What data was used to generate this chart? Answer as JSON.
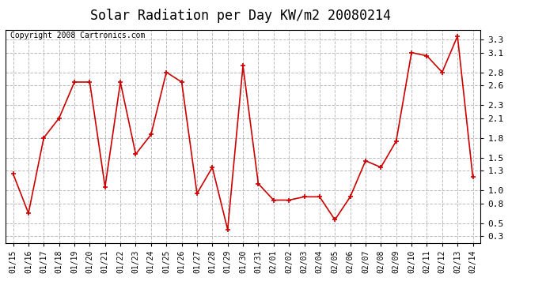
{
  "title": "Solar Radiation per Day KW/m2 20080214",
  "copyright": "Copyright 2008 Cartronics.com",
  "dates": [
    "01/15",
    "01/16",
    "01/17",
    "01/18",
    "01/19",
    "01/20",
    "01/21",
    "01/22",
    "01/23",
    "01/24",
    "01/25",
    "01/26",
    "01/27",
    "01/28",
    "01/29",
    "01/30",
    "01/31",
    "02/01",
    "02/02",
    "02/03",
    "02/04",
    "02/05",
    "02/06",
    "02/07",
    "02/08",
    "02/09",
    "02/10",
    "02/11",
    "02/12",
    "02/13",
    "02/14"
  ],
  "values": [
    1.25,
    0.65,
    1.8,
    2.1,
    2.65,
    2.65,
    1.05,
    2.65,
    1.55,
    1.85,
    2.8,
    2.65,
    0.95,
    1.35,
    0.4,
    2.9,
    1.1,
    0.85,
    0.85,
    0.9,
    0.9,
    0.55,
    0.9,
    1.45,
    1.35,
    1.75,
    3.1,
    3.05,
    2.8,
    3.35,
    1.2
  ],
  "line_color": "#cc0000",
  "marker": "+",
  "marker_size": 5,
  "line_width": 1.2,
  "ylim": [
    0.2,
    3.45
  ],
  "yticks": [
    0.3,
    0.5,
    0.8,
    1.0,
    1.3,
    1.5,
    1.8,
    2.1,
    2.3,
    2.6,
    2.8,
    3.1,
    3.3
  ],
  "bg_color": "#ffffff",
  "grid_color": "#bbbbbb",
  "title_fontsize": 12,
  "copyright_fontsize": 7,
  "tick_fontsize": 7,
  "ytick_fontsize": 8
}
